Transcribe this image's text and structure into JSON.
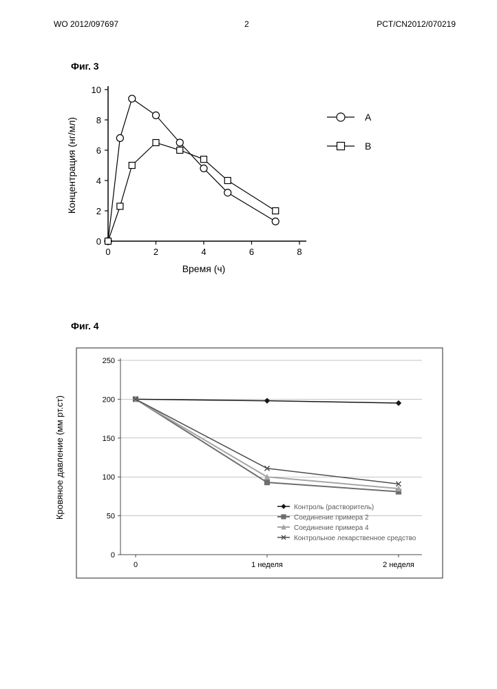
{
  "header": {
    "wo": "WO 2012/097697",
    "page": "2",
    "pct": "PCT/CN2012/070219"
  },
  "fig3": {
    "label": "Фиг. 3",
    "type": "line",
    "xlabel": "Время (ч)",
    "ylabel": "Концентрация (нг/мл)",
    "xlim": [
      0,
      8
    ],
    "ylim": [
      0,
      10
    ],
    "xtick_step": 2,
    "ytick_step": 2,
    "x_values": [
      0,
      0.5,
      1,
      2,
      3,
      4,
      5,
      7
    ],
    "series": [
      {
        "name": "A",
        "marker": "circle",
        "marker_size": 10,
        "line_color": "#000000",
        "line_width": 1.2,
        "values": [
          0,
          6.8,
          9.4,
          8.3,
          6.5,
          4.8,
          3.2,
          1.3
        ]
      },
      {
        "name": "В",
        "marker": "square",
        "marker_size": 9,
        "line_color": "#000000",
        "line_width": 1.2,
        "values": [
          0,
          2.3,
          5.0,
          6.5,
          6.0,
          5.4,
          4.0,
          2.0
        ]
      }
    ],
    "background_color": "#ffffff",
    "axis_color": "#000000",
    "text_color": "#000000",
    "font_size": 13,
    "label_fontsize": 14
  },
  "fig4": {
    "label": "Фиг. 4",
    "type": "line",
    "xlabel_categories": [
      "0",
      "1 неделя",
      "2 неделя"
    ],
    "ylabel": "Кровяное давление (мм рт.ст)",
    "ylim": [
      0,
      250
    ],
    "ytick_step": 50,
    "x_positions": [
      0,
      1,
      2
    ],
    "series": [
      {
        "name": "Контроль (растворитель)",
        "marker": "diamond",
        "line_color": "#171717",
        "line_width": 1.5,
        "values": [
          200,
          198,
          195
        ]
      },
      {
        "name": "Соединение примера 2",
        "marker": "square",
        "line_color": "#6e6e6e",
        "line_width": 2,
        "values": [
          200,
          93,
          81
        ]
      },
      {
        "name": "Соединение примера 4",
        "marker": "triangle",
        "line_color": "#a5a5a5",
        "line_width": 2,
        "values": [
          200,
          100,
          85
        ]
      },
      {
        "name": "Контрольное лекарственное средство",
        "marker": "x",
        "line_color": "#4d4d4d",
        "line_width": 1.5,
        "values": [
          200,
          111,
          91
        ]
      }
    ],
    "background_color": "#ffffff",
    "grid_color": "#8a8a8a",
    "grid_width": 0.5,
    "border_color": "#4a4a4a",
    "text_color": "#000000",
    "font_size_axis": 11,
    "font_size_legend": 10,
    "legend_text_color": "#5a5a5a"
  }
}
